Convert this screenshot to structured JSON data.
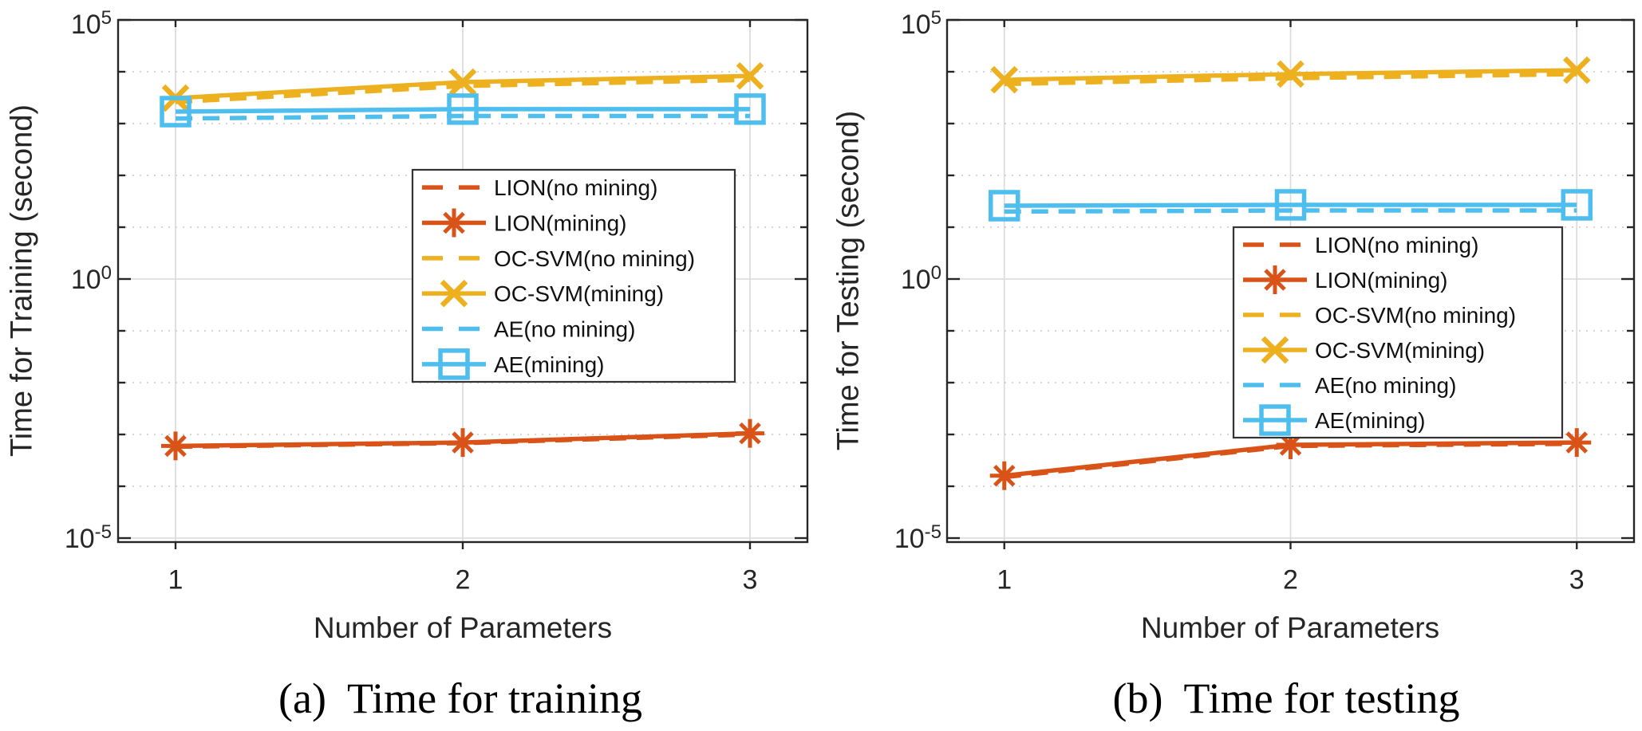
{
  "colors": {
    "lion": "#d95319",
    "ocsvm": "#edb120",
    "ae": "#4dbeee",
    "axis": "#262626",
    "grid": "#d9d9d9",
    "grid_dotted": "#cfcfcf",
    "background": "#ffffff",
    "legend_border": "#333333",
    "legend_background": "#ffffff",
    "text": "#262626",
    "caption_color": "#000000"
  },
  "chart_data": [
    {
      "type": "line",
      "caption": "(a)  Time for training",
      "xlabel": "Number of Parameters",
      "ylabel": "Time for Training (second)",
      "x": [
        1,
        2,
        3
      ],
      "xticks": [
        "1",
        "2",
        "3"
      ],
      "xlim": [
        0.8,
        3.2
      ],
      "yscale": "log10",
      "ylim_exponents": [
        -5,
        5
      ],
      "ytick_exponents": [
        5,
        0,
        -5
      ],
      "grid": {
        "x_major_solid": true,
        "y_major_solid": true,
        "y_minor_dotted": true
      },
      "legend_position": "center",
      "series": [
        {
          "name": "LION(no mining)",
          "color": "lion",
          "style": "dashed",
          "marker": "none",
          "values": [
            0.00058,
            0.00068,
            0.001
          ]
        },
        {
          "name": "LION(mining)",
          "color": "lion",
          "style": "solid",
          "marker": "asterisk",
          "values": [
            0.0006,
            0.0007,
            0.00105
          ]
        },
        {
          "name": "OC-SVM(no mining)",
          "color": "ocsvm",
          "style": "dashed",
          "marker": "none",
          "values": [
            2600,
            5300,
            7000
          ]
        },
        {
          "name": "OC-SVM(mining)",
          "color": "ocsvm",
          "style": "solid",
          "marker": "x",
          "values": [
            3100,
            6300,
            8300
          ]
        },
        {
          "name": "AE(no mining)",
          "color": "ae",
          "style": "dashed",
          "marker": "none",
          "values": [
            1250,
            1400,
            1400
          ]
        },
        {
          "name": "AE(mining)",
          "color": "ae",
          "style": "solid",
          "marker": "square",
          "values": [
            1700,
            1900,
            1900
          ]
        }
      ]
    },
    {
      "type": "line",
      "caption": "(b)  Time for testing",
      "xlabel": "Number of Parameters",
      "ylabel": "Time for Testing (second)",
      "x": [
        1,
        2,
        3
      ],
      "xticks": [
        "1",
        "2",
        "3"
      ],
      "xlim": [
        0.8,
        3.2
      ],
      "yscale": "log10",
      "ylim_exponents": [
        -5,
        5
      ],
      "ytick_exponents": [
        5,
        0,
        -5
      ],
      "grid": {
        "x_major_solid": true,
        "y_major_solid": true,
        "y_minor_dotted": true
      },
      "legend_position": "lower-right",
      "series": [
        {
          "name": "LION(no mining)",
          "color": "lion",
          "style": "dashed",
          "marker": "none",
          "values": [
            0.00015,
            0.0006,
            0.00066
          ]
        },
        {
          "name": "LION(mining)",
          "color": "lion",
          "style": "solid",
          "marker": "asterisk",
          "values": [
            0.00016,
            0.00063,
            0.0007
          ]
        },
        {
          "name": "OC-SVM(no mining)",
          "color": "ocsvm",
          "style": "dashed",
          "marker": "none",
          "values": [
            5800,
            7500,
            9000
          ]
        },
        {
          "name": "OC-SVM(mining)",
          "color": "ocsvm",
          "style": "solid",
          "marker": "x",
          "values": [
            7000,
            9000,
            10700
          ]
        },
        {
          "name": "AE(no mining)",
          "color": "ae",
          "style": "dashed",
          "marker": "none",
          "values": [
            20,
            21,
            21
          ]
        },
        {
          "name": "AE(mining)",
          "color": "ae",
          "style": "solid",
          "marker": "square",
          "values": [
            26,
            27,
            27
          ]
        }
      ]
    }
  ]
}
